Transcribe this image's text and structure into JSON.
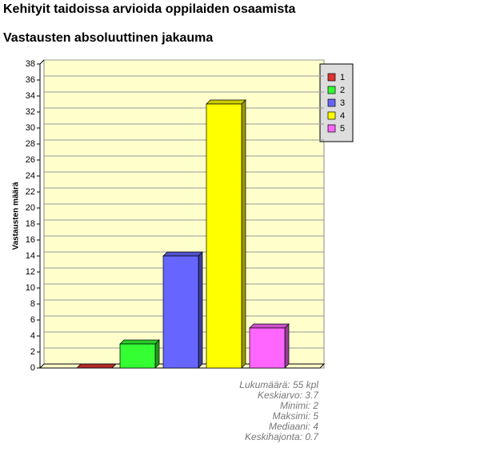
{
  "chart_data": {
    "type": "bar",
    "title": "Kehityit taidoissa arvioida oppilaiden osaamista",
    "subtitle": "Vastausten absoluuttinen jakauma",
    "y_label": "Vastausten määrä",
    "categories": [
      "1",
      "2",
      "3",
      "4",
      "5"
    ],
    "values": [
      0,
      3,
      14,
      33,
      5
    ],
    "colors": [
      "#dd3333",
      "#33ff33",
      "#6666ff",
      "#ffff00",
      "#ff66ff"
    ],
    "ylim": [
      0,
      38
    ],
    "yticks": [
      0,
      2,
      4,
      6,
      8,
      10,
      12,
      14,
      16,
      18,
      20,
      22,
      24,
      26,
      28,
      30,
      32,
      34,
      36,
      38
    ],
    "grid": true,
    "stats": [
      "Lukumäärä: 55 kpl",
      "Keskiarvo: 3.7",
      "Minimi: 2",
      "Maksimi: 5",
      "Mediaani: 4",
      "Keskihajonta: 0.7"
    ]
  }
}
